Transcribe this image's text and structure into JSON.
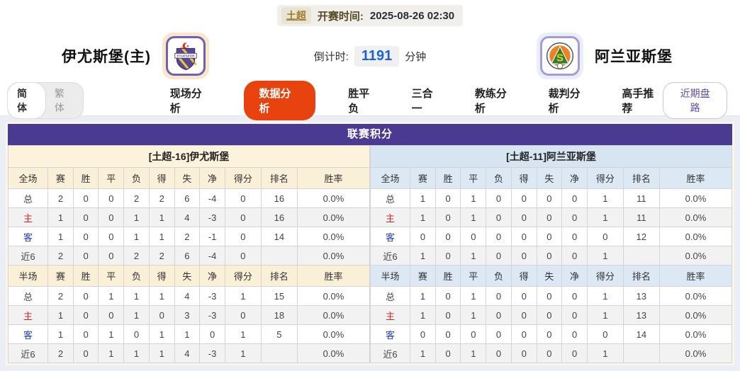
{
  "header": {
    "league": "土超",
    "start_label": "开赛时间:",
    "start_time": "2025-08-26 02:30",
    "home_team": {
      "name": "伊尤斯堡(主)",
      "logo_icon": "eyupspor-crest"
    },
    "away_team": {
      "name": "阿兰亚斯堡",
      "logo_icon": "alanyaspor-crest"
    },
    "countdown": {
      "label": "倒计时:",
      "value": "1191",
      "unit": "分钟"
    }
  },
  "nav": {
    "lang": [
      {
        "label": "简体",
        "active": true
      },
      {
        "label": "繁体",
        "active": false
      }
    ],
    "tabs": [
      {
        "label": "现场分析",
        "active": false
      },
      {
        "label": "数据分析",
        "active": true
      },
      {
        "label": "胜平负",
        "active": false
      },
      {
        "label": "三合一",
        "active": false
      },
      {
        "label": "教练分析",
        "active": false
      },
      {
        "label": "裁判分析",
        "active": false
      },
      {
        "label": "高手推荐",
        "active": false
      }
    ],
    "recent_button": "近期盘路"
  },
  "table": {
    "title": "联赛积分",
    "columns": [
      "赛",
      "胜",
      "平",
      "负",
      "得",
      "失",
      "净",
      "得分",
      "排名",
      "胜率"
    ],
    "full_label": "全场",
    "half_label": "半场",
    "home": {
      "title": "[土超-16]伊尤斯堡",
      "full": [
        {
          "label": "总",
          "type": "total",
          "values": [
            "2",
            "0",
            "0",
            "2",
            "2",
            "6",
            "-4",
            "0",
            "16",
            "0.0%"
          ]
        },
        {
          "label": "主",
          "type": "home",
          "values": [
            "1",
            "0",
            "0",
            "1",
            "1",
            "4",
            "-3",
            "0",
            "16",
            "0.0%"
          ]
        },
        {
          "label": "客",
          "type": "away",
          "values": [
            "1",
            "0",
            "0",
            "1",
            "1",
            "2",
            "-1",
            "0",
            "14",
            "0.0%"
          ]
        },
        {
          "label": "近6",
          "type": "recent",
          "values": [
            "2",
            "0",
            "0",
            "2",
            "2",
            "6",
            "-4",
            "0",
            "",
            "0.0%"
          ]
        }
      ],
      "half": [
        {
          "label": "总",
          "type": "total",
          "values": [
            "2",
            "0",
            "1",
            "1",
            "1",
            "4",
            "-3",
            "1",
            "15",
            "0.0%"
          ]
        },
        {
          "label": "主",
          "type": "home",
          "values": [
            "1",
            "0",
            "0",
            "1",
            "0",
            "3",
            "-3",
            "0",
            "18",
            "0.0%"
          ]
        },
        {
          "label": "客",
          "type": "away",
          "values": [
            "1",
            "0",
            "1",
            "0",
            "1",
            "1",
            "0",
            "1",
            "5",
            "0.0%"
          ]
        },
        {
          "label": "近6",
          "type": "recent",
          "values": [
            "2",
            "0",
            "1",
            "1",
            "1",
            "4",
            "-3",
            "1",
            "",
            "0.0%"
          ]
        }
      ]
    },
    "away": {
      "title": "[土超-11]阿兰亚斯堡",
      "full": [
        {
          "label": "总",
          "type": "total",
          "values": [
            "1",
            "0",
            "1",
            "0",
            "0",
            "0",
            "0",
            "1",
            "11",
            "0.0%"
          ]
        },
        {
          "label": "主",
          "type": "home",
          "values": [
            "1",
            "0",
            "1",
            "0",
            "0",
            "0",
            "0",
            "1",
            "11",
            "0.0%"
          ]
        },
        {
          "label": "客",
          "type": "away",
          "values": [
            "0",
            "0",
            "0",
            "0",
            "0",
            "0",
            "0",
            "0",
            "12",
            "0.0%"
          ]
        },
        {
          "label": "近6",
          "type": "recent",
          "values": [
            "1",
            "0",
            "1",
            "0",
            "0",
            "0",
            "0",
            "1",
            "",
            "0.0%"
          ]
        }
      ],
      "half": [
        {
          "label": "总",
          "type": "total",
          "values": [
            "1",
            "0",
            "1",
            "0",
            "0",
            "0",
            "0",
            "1",
            "13",
            "0.0%"
          ]
        },
        {
          "label": "主",
          "type": "home",
          "values": [
            "1",
            "0",
            "1",
            "0",
            "0",
            "0",
            "0",
            "1",
            "13",
            "0.0%"
          ]
        },
        {
          "label": "客",
          "type": "away",
          "values": [
            "0",
            "0",
            "0",
            "0",
            "0",
            "0",
            "0",
            "0",
            "14",
            "0.0%"
          ]
        },
        {
          "label": "近6",
          "type": "recent",
          "values": [
            "1",
            "0",
            "1",
            "0",
            "0",
            "0",
            "0",
            "1",
            "",
            "0.0%"
          ]
        }
      ]
    }
  },
  "colors": {
    "primary_purple": "#4a3a92",
    "active_tab_red": "#e8430f",
    "countdown_blue": "#1b62d6",
    "home_panel_cream": "#faf0d8",
    "home_title_cream": "#fdf3dc",
    "away_panel_blue": "#dce8f3",
    "away_title_blue": "#d7e5f2",
    "home_label_red": "#cc2a2a",
    "away_label_blue": "#2440cc",
    "league_gold": "#9a7c2a",
    "recent_purple": "#5a4bb0",
    "page_bg": "#ebeff5",
    "border_gray": "#d4d4d4",
    "table_frame": "#fbf6ea"
  }
}
